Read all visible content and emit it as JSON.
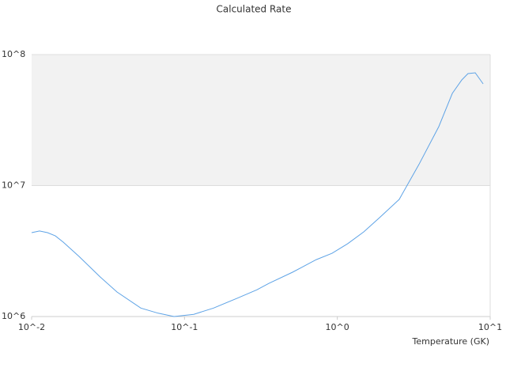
{
  "chart_data": {
    "type": "line",
    "title": "Calculated Rate",
    "xlabel": "Temperature (GK)",
    "xscale": "log",
    "yscale": "log",
    "xlim": [
      0.01,
      10
    ],
    "ylim": [
      1000000,
      100000000
    ],
    "xticks": [
      {
        "value": 0.01,
        "label": "10^-2"
      },
      {
        "value": 0.1,
        "label": "10^-1"
      },
      {
        "value": 1,
        "label": "10^0"
      },
      {
        "value": 10,
        "label": "10^1"
      }
    ],
    "yticks": [
      {
        "value": 1000000,
        "label": "10^6"
      },
      {
        "value": 10000000,
        "label": "10^7"
      },
      {
        "value": 100000000,
        "label": "10^8"
      }
    ],
    "band_color": "#f2f2f2",
    "series": [
      {
        "color": "#5ea3e6",
        "x": [
          0.01,
          0.01126,
          0.0127,
          0.01429,
          0.0161,
          0.0204,
          0.0282,
          0.0362,
          0.0518,
          0.0673,
          0.0854,
          0.115,
          0.155,
          0.221,
          0.298,
          0.356,
          0.509,
          0.728,
          0.924,
          1.17,
          1.49,
          1.89,
          2.54,
          3.42,
          4.61,
          5.65,
          6.52,
          7.16,
          7.98,
          8.99
        ],
        "values": [
          4370000,
          4500000,
          4370000,
          4130000,
          3700000,
          2880000,
          2000000,
          1540000,
          1160000,
          1060000,
          1000000,
          1040000,
          1160000,
          1380000,
          1600000,
          1790000,
          2180000,
          2720000,
          3040000,
          3600000,
          4430000,
          5690000,
          7840000,
          14500000,
          28200000,
          50600000,
          64100000,
          71600000,
          72600000,
          59800000
        ]
      }
    ]
  }
}
